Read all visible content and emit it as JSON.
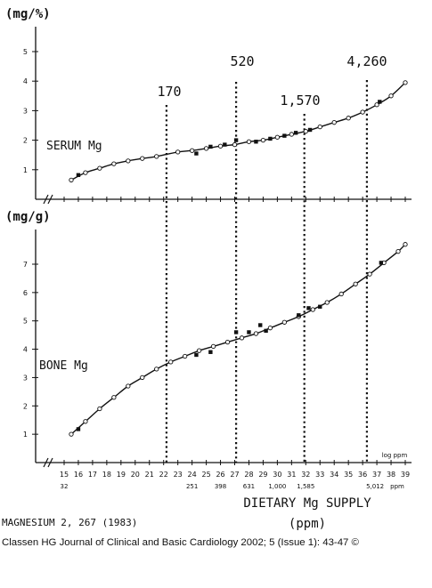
{
  "chart_data": {
    "type": "scatter",
    "x_axis": {
      "label": "DIETARY  Mg  SUPPLY",
      "unit_label": "(ppm)",
      "scale_note": "log ppm",
      "range": [
        15,
        39
      ],
      "ticks": [
        {
          "v": 15,
          "label": "15"
        },
        {
          "v": 16,
          "label": "16"
        },
        {
          "v": 17,
          "label": "17"
        },
        {
          "v": 18,
          "label": "18"
        },
        {
          "v": 19,
          "label": "19"
        },
        {
          "v": 20,
          "label": "20"
        },
        {
          "v": 21,
          "label": "21"
        },
        {
          "v": 22,
          "label": "22"
        },
        {
          "v": 23,
          "label": "23"
        },
        {
          "v": 24,
          "label": "24"
        },
        {
          "v": 25,
          "label": "25"
        },
        {
          "v": 26,
          "label": "26"
        },
        {
          "v": 27,
          "label": "27"
        },
        {
          "v": 28,
          "label": "28"
        },
        {
          "v": 29,
          "label": "29"
        },
        {
          "v": 30,
          "label": "30"
        },
        {
          "v": 31,
          "label": "31"
        },
        {
          "v": 32,
          "label": "32"
        },
        {
          "v": 33,
          "label": "33"
        },
        {
          "v": 34,
          "label": "34"
        },
        {
          "v": 35,
          "label": "35"
        },
        {
          "v": 36,
          "label": "36"
        },
        {
          "v": 37,
          "label": "37"
        },
        {
          "v": 38,
          "label": "38"
        },
        {
          "v": 39,
          "label": "39"
        }
      ],
      "ppm_ticks": [
        {
          "v": 15,
          "label": "32"
        },
        {
          "v": 24,
          "label": "251"
        },
        {
          "v": 26,
          "label": "398"
        },
        {
          "v": 28,
          "label": "631"
        },
        {
          "v": 30,
          "label": "1,000"
        },
        {
          "v": 32,
          "label": "1,585"
        },
        {
          "v": 37,
          "label": "5,012"
        }
      ],
      "ppm_unit": "ppm"
    },
    "reference_lines": [
      {
        "x": 22.2,
        "label": "170"
      },
      {
        "x": 27.1,
        "label": "520"
      },
      {
        "x": 31.9,
        "label": "1,570"
      },
      {
        "x": 36.3,
        "label": "4,260"
      }
    ],
    "panels": [
      {
        "id": "serum",
        "series_label": "SERUM  Mg",
        "y_unit": "(mg/%)",
        "y_range": [
          0,
          5
        ],
        "y_ticks": [
          1,
          2,
          3,
          4,
          5
        ],
        "open_points": [
          {
            "x": 15.5,
            "y": 0.65
          },
          {
            "x": 16.5,
            "y": 0.9
          },
          {
            "x": 17.5,
            "y": 1.05
          },
          {
            "x": 18.5,
            "y": 1.2
          },
          {
            "x": 19.5,
            "y": 1.3
          },
          {
            "x": 20.5,
            "y": 1.38
          },
          {
            "x": 21.5,
            "y": 1.45
          },
          {
            "x": 23,
            "y": 1.6
          },
          {
            "x": 24,
            "y": 1.65
          },
          {
            "x": 25,
            "y": 1.72
          },
          {
            "x": 26,
            "y": 1.8
          },
          {
            "x": 27,
            "y": 1.85
          },
          {
            "x": 28,
            "y": 1.95
          },
          {
            "x": 29,
            "y": 2.0
          },
          {
            "x": 30,
            "y": 2.1
          },
          {
            "x": 31,
            "y": 2.2
          },
          {
            "x": 32,
            "y": 2.3
          },
          {
            "x": 33,
            "y": 2.45
          },
          {
            "x": 34,
            "y": 2.6
          },
          {
            "x": 35,
            "y": 2.75
          },
          {
            "x": 36,
            "y": 2.95
          },
          {
            "x": 37,
            "y": 3.2
          },
          {
            "x": 38,
            "y": 3.5
          },
          {
            "x": 39,
            "y": 3.95
          }
        ],
        "filled_points": [
          {
            "x": 16,
            "y": 0.82
          },
          {
            "x": 24.3,
            "y": 1.55
          },
          {
            "x": 25.3,
            "y": 1.78
          },
          {
            "x": 26.3,
            "y": 1.85
          },
          {
            "x": 27.1,
            "y": 2.0
          },
          {
            "x": 28.5,
            "y": 1.95
          },
          {
            "x": 29.5,
            "y": 2.05
          },
          {
            "x": 30.5,
            "y": 2.15
          },
          {
            "x": 31.3,
            "y": 2.25
          },
          {
            "x": 32.3,
            "y": 2.35
          },
          {
            "x": 37.2,
            "y": 3.3
          }
        ]
      },
      {
        "id": "bone",
        "series_label": "BONE  Mg",
        "y_unit": "(mg/g)",
        "y_range": [
          0,
          8
        ],
        "y_ticks": [
          1,
          2,
          3,
          4,
          5,
          6,
          7
        ],
        "open_points": [
          {
            "x": 15.5,
            "y": 1.0
          },
          {
            "x": 16.5,
            "y": 1.45
          },
          {
            "x": 17.5,
            "y": 1.9
          },
          {
            "x": 18.5,
            "y": 2.3
          },
          {
            "x": 19.5,
            "y": 2.7
          },
          {
            "x": 20.5,
            "y": 3.0
          },
          {
            "x": 21.5,
            "y": 3.3
          },
          {
            "x": 22.5,
            "y": 3.55
          },
          {
            "x": 23.5,
            "y": 3.75
          },
          {
            "x": 24.5,
            "y": 3.95
          },
          {
            "x": 25.5,
            "y": 4.1
          },
          {
            "x": 26.5,
            "y": 4.25
          },
          {
            "x": 27.5,
            "y": 4.4
          },
          {
            "x": 28.5,
            "y": 4.55
          },
          {
            "x": 29.5,
            "y": 4.75
          },
          {
            "x": 30.5,
            "y": 4.95
          },
          {
            "x": 31.5,
            "y": 5.15
          },
          {
            "x": 32.5,
            "y": 5.4
          },
          {
            "x": 33.5,
            "y": 5.65
          },
          {
            "x": 34.5,
            "y": 5.95
          },
          {
            "x": 35.5,
            "y": 6.3
          },
          {
            "x": 36.5,
            "y": 6.65
          },
          {
            "x": 37.5,
            "y": 7.05
          },
          {
            "x": 38.5,
            "y": 7.45
          },
          {
            "x": 39,
            "y": 7.7
          }
        ],
        "filled_points": [
          {
            "x": 16,
            "y": 1.18
          },
          {
            "x": 24.3,
            "y": 3.8
          },
          {
            "x": 25.3,
            "y": 3.9
          },
          {
            "x": 27.1,
            "y": 4.6
          },
          {
            "x": 28,
            "y": 4.6
          },
          {
            "x": 28.8,
            "y": 4.85
          },
          {
            "x": 29.2,
            "y": 4.65
          },
          {
            "x": 31.5,
            "y": 5.2
          },
          {
            "x": 32.2,
            "y": 5.45
          },
          {
            "x": 33,
            "y": 5.5
          },
          {
            "x": 37.3,
            "y": 7.05
          }
        ]
      }
    ]
  },
  "footer": {
    "reference": "MAGNESIUM  2, 267 (1983)",
    "credit": "Classen HG Journal of Clinical and Basic Cardiology 2002; 5 (Issue 1): 43-47 ©"
  }
}
